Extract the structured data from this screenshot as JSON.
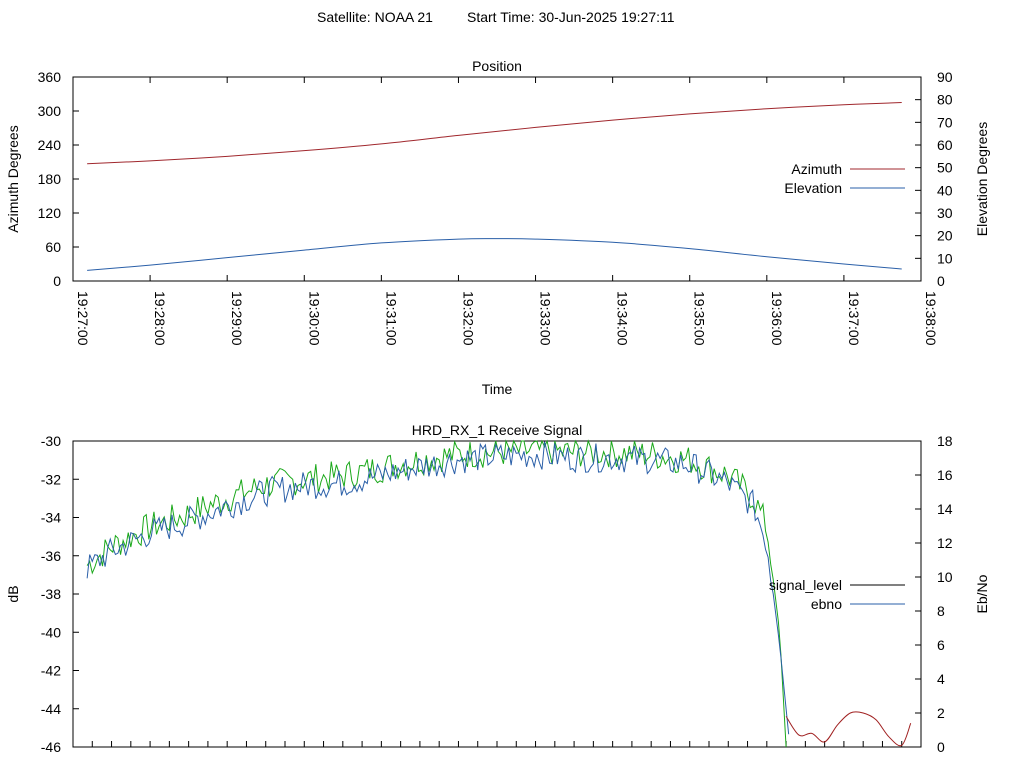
{
  "header": {
    "satellite": "Satellite: NOAA 21",
    "start_time": "Start Time: 30-Jun-2025 19:27:11"
  },
  "colors": {
    "azimuth": "#a0272d",
    "elevation": "#2a5fa8",
    "signal_level": "#000000",
    "signal_level_drawn": "#1aa81a",
    "signal_tail": "#a02020",
    "ebno": "#2a5fa8"
  },
  "chart_data": [
    {
      "type": "line",
      "title": "Position",
      "xlabel": "Time",
      "ylabel": "Azimuth Degrees",
      "y2label": "Elevation Degrees",
      "xlim": [
        "19:27:00",
        "19:38:00"
      ],
      "ylim": [
        0,
        360
      ],
      "y2lim": [
        0,
        90
      ],
      "x_ticks": [
        "19:27:00",
        "19:28:00",
        "19:29:00",
        "19:30:00",
        "19:31:00",
        "19:32:00",
        "19:33:00",
        "19:34:00",
        "19:35:00",
        "19:36:00",
        "19:37:00",
        "19:38:00"
      ],
      "y_ticks": [
        "0",
        "60",
        "120",
        "180",
        "240",
        "300",
        "360"
      ],
      "y2_ticks": [
        "0",
        "10",
        "20",
        "30",
        "40",
        "50",
        "60",
        "70",
        "80",
        "90"
      ],
      "grid": false,
      "legend": "right",
      "series": [
        {
          "name": "Azimuth",
          "axis": "y",
          "x": [
            "19:27:11",
            "19:28:00",
            "19:29:00",
            "19:30:00",
            "19:31:00",
            "19:32:00",
            "19:33:00",
            "19:34:00",
            "19:35:00",
            "19:36:00",
            "19:37:00",
            "19:37:45"
          ],
          "values": [
            207,
            212,
            220,
            230,
            242,
            257,
            271,
            284,
            295,
            304,
            311,
            315
          ]
        },
        {
          "name": "Elevation",
          "axis": "y2",
          "x": [
            "19:27:11",
            "19:28:00",
            "19:29:00",
            "19:30:00",
            "19:31:00",
            "19:32:00",
            "19:32:30",
            "19:33:00",
            "19:34:00",
            "19:35:00",
            "19:36:00",
            "19:37:00",
            "19:37:45"
          ],
          "values": [
            4.7,
            7.0,
            10.3,
            13.6,
            16.8,
            18.5,
            18.7,
            18.5,
            17.1,
            14.3,
            10.7,
            7.5,
            5.3
          ]
        }
      ]
    },
    {
      "type": "line",
      "title": "HRD_RX_1 Receive Signal",
      "ylabel": "dB",
      "y2label": "Eb/No",
      "xlim": [
        "19:27:00",
        "19:38:00"
      ],
      "ylim": [
        -46,
        -30
      ],
      "y2lim": [
        0,
        18
      ],
      "y_ticks": [
        "-30",
        "-32",
        "-34",
        "-36",
        "-38",
        "-40",
        "-42",
        "-44",
        "-46"
      ],
      "y2_ticks": [
        "18",
        "16",
        "14",
        "12",
        "10",
        "8",
        "6",
        "4",
        "2",
        "0"
      ],
      "grid": false,
      "legend": "right",
      "series": [
        {
          "name": "signal_level",
          "axis": "y",
          "x": [
            "19:27:11",
            "19:27:30",
            "19:28:00",
            "19:28:30",
            "19:29:00",
            "19:29:30",
            "19:30:00",
            "19:30:30",
            "19:31:00",
            "19:31:30",
            "19:32:00",
            "19:32:30",
            "19:33:00",
            "19:33:30",
            "19:34:00",
            "19:34:30",
            "19:35:00",
            "19:35:30",
            "19:35:50",
            "19:36:00",
            "19:36:10",
            "19:36:15"
          ],
          "values": [
            -36.5,
            -35.5,
            -34.5,
            -33.8,
            -33.0,
            -32.3,
            -32.0,
            -31.8,
            -31.4,
            -31.0,
            -30.7,
            -30.6,
            -30.5,
            -30.6,
            -30.6,
            -30.7,
            -31.0,
            -31.8,
            -33.0,
            -34.5,
            -40.0,
            -46.0
          ]
        },
        {
          "name": "ebno",
          "axis": "y2",
          "x": [
            "19:27:11",
            "19:27:30",
            "19:28:00",
            "19:28:30",
            "19:29:00",
            "19:29:30",
            "19:30:00",
            "19:30:30",
            "19:31:00",
            "19:31:30",
            "19:32:00",
            "19:32:30",
            "19:33:00",
            "19:33:30",
            "19:34:00",
            "19:34:30",
            "19:35:00",
            "19:35:30",
            "19:35:50",
            "19:36:00",
            "19:36:10",
            "19:36:18"
          ],
          "values": [
            10.5,
            11.5,
            12.6,
            13.3,
            14.2,
            15.0,
            15.4,
            15.5,
            16.0,
            16.5,
            16.9,
            17.1,
            17.2,
            17.0,
            17.0,
            16.9,
            16.6,
            15.5,
            14.2,
            12.0,
            6.0,
            0.0
          ]
        },
        {
          "axis": "y2",
          "x": [
            "19:36:15",
            "19:36:25",
            "19:36:35",
            "19:36:45",
            "19:36:55",
            "19:37:05",
            "19:37:15",
            "19:37:25",
            "19:37:35",
            "19:37:45",
            "19:37:52"
          ],
          "values": [
            1.8,
            0.7,
            0.8,
            0.3,
            1.3,
            2.0,
            2.0,
            1.6,
            0.6,
            0.1,
            1.4
          ]
        }
      ]
    }
  ]
}
